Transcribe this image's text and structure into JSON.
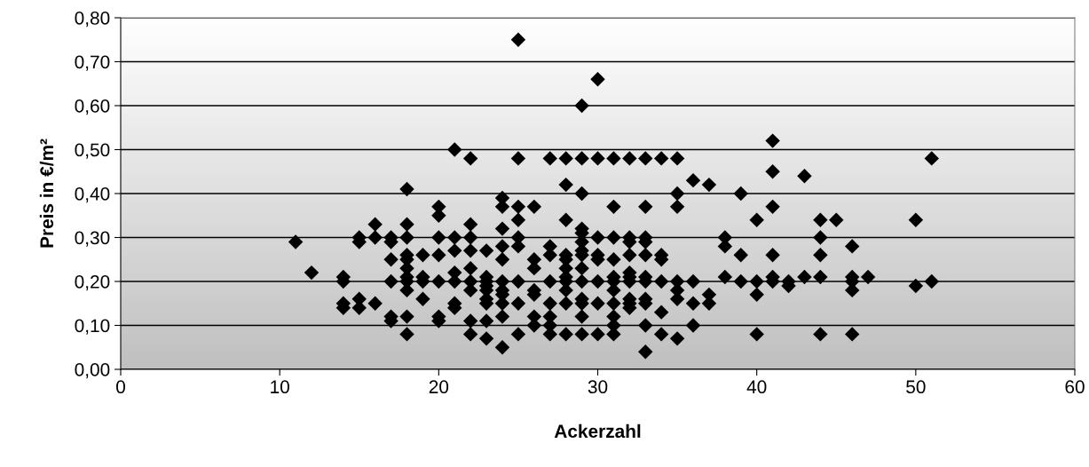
{
  "chart_data": {
    "type": "scatter",
    "xlabel": "Ackerzahl",
    "ylabel": "Preis in €/m²",
    "x": [
      11,
      12,
      14,
      14,
      14,
      14,
      15,
      15,
      15,
      15,
      16,
      16,
      16,
      17,
      17,
      17,
      17,
      17,
      17,
      18,
      18,
      18,
      18,
      18,
      18,
      18,
      18,
      18,
      18,
      18,
      19,
      19,
      19,
      19,
      20,
      20,
      20,
      20,
      20,
      20,
      20,
      21,
      21,
      21,
      21,
      21,
      21,
      21,
      22,
      22,
      22,
      22,
      22,
      22,
      22,
      22,
      22,
      23,
      23,
      23,
      23,
      23,
      23,
      23,
      23,
      23,
      24,
      24,
      24,
      24,
      24,
      24,
      24,
      24,
      24,
      24,
      24,
      25,
      25,
      25,
      25,
      25,
      25,
      25,
      25,
      25,
      26,
      26,
      26,
      26,
      26,
      26,
      26,
      27,
      27,
      27,
      27,
      27,
      27,
      27,
      27,
      28,
      28,
      28,
      28,
      28,
      28,
      28,
      28,
      28,
      28,
      28,
      29,
      29,
      29,
      29,
      29,
      29,
      29,
      29,
      29,
      29,
      29,
      29,
      29,
      29,
      30,
      30,
      30,
      30,
      30,
      30,
      30,
      30,
      31,
      31,
      31,
      31,
      31,
      31,
      31,
      31,
      31,
      31,
      31,
      32,
      32,
      32,
      32,
      32,
      32,
      32,
      32,
      32,
      32,
      33,
      33,
      33,
      33,
      33,
      33,
      33,
      33,
      33,
      33,
      33,
      34,
      34,
      34,
      34,
      34,
      34,
      35,
      35,
      35,
      35,
      35,
      35,
      35,
      36,
      36,
      36,
      36,
      37,
      37,
      37,
      38,
      38,
      38,
      39,
      39,
      39,
      40,
      40,
      40,
      40,
      41,
      41,
      41,
      41,
      41,
      41,
      42,
      42,
      43,
      43,
      44,
      44,
      44,
      44,
      44,
      45,
      46,
      46,
      46,
      46,
      46,
      47,
      50,
      50,
      51,
      51
    ],
    "values": [
      0.29,
      0.22,
      0.21,
      0.2,
      0.15,
      0.14,
      0.3,
      0.29,
      0.16,
      0.14,
      0.33,
      0.3,
      0.15,
      0.3,
      0.29,
      0.25,
      0.2,
      0.12,
      0.11,
      0.41,
      0.33,
      0.3,
      0.26,
      0.25,
      0.23,
      0.21,
      0.2,
      0.18,
      0.12,
      0.08,
      0.26,
      0.21,
      0.2,
      0.16,
      0.37,
      0.35,
      0.3,
      0.26,
      0.2,
      0.12,
      0.11,
      0.5,
      0.3,
      0.27,
      0.22,
      0.2,
      0.15,
      0.14,
      0.48,
      0.33,
      0.3,
      0.27,
      0.23,
      0.2,
      0.18,
      0.11,
      0.08,
      0.27,
      0.21,
      0.2,
      0.19,
      0.18,
      0.16,
      0.15,
      0.11,
      0.07,
      0.39,
      0.37,
      0.32,
      0.28,
      0.25,
      0.2,
      0.18,
      0.17,
      0.15,
      0.12,
      0.05,
      0.75,
      0.48,
      0.37,
      0.34,
      0.3,
      0.28,
      0.2,
      0.15,
      0.08,
      0.37,
      0.25,
      0.23,
      0.18,
      0.17,
      0.12,
      0.1,
      0.48,
      0.28,
      0.26,
      0.2,
      0.15,
      0.12,
      0.1,
      0.08,
      0.48,
      0.42,
      0.34,
      0.26,
      0.25,
      0.23,
      0.21,
      0.2,
      0.18,
      0.15,
      0.08,
      0.6,
      0.48,
      0.4,
      0.32,
      0.31,
      0.29,
      0.27,
      0.26,
      0.23,
      0.2,
      0.16,
      0.15,
      0.12,
      0.08,
      0.66,
      0.48,
      0.3,
      0.26,
      0.25,
      0.2,
      0.15,
      0.08,
      0.48,
      0.37,
      0.3,
      0.25,
      0.21,
      0.2,
      0.18,
      0.15,
      0.12,
      0.1,
      0.08,
      0.48,
      0.3,
      0.29,
      0.26,
      0.22,
      0.21,
      0.2,
      0.16,
      0.15,
      0.14,
      0.48,
      0.37,
      0.3,
      0.29,
      0.26,
      0.21,
      0.2,
      0.16,
      0.15,
      0.1,
      0.04,
      0.48,
      0.26,
      0.25,
      0.2,
      0.13,
      0.08,
      0.48,
      0.4,
      0.37,
      0.2,
      0.18,
      0.16,
      0.07,
      0.43,
      0.2,
      0.15,
      0.1,
      0.42,
      0.17,
      0.15,
      0.3,
      0.28,
      0.21,
      0.4,
      0.26,
      0.2,
      0.34,
      0.2,
      0.17,
      0.08,
      0.52,
      0.45,
      0.37,
      0.26,
      0.21,
      0.2,
      0.2,
      0.19,
      0.44,
      0.21,
      0.34,
      0.3,
      0.26,
      0.21,
      0.08,
      0.34,
      0.28,
      0.21,
      0.2,
      0.18,
      0.08,
      0.21,
      0.34,
      0.19,
      0.48,
      0.2
    ],
    "color": "#000000",
    "marker": "diamond",
    "xlim": [
      0,
      60
    ],
    "xticks": [
      0,
      10,
      20,
      30,
      40,
      50,
      60
    ],
    "ylim": [
      0,
      0.8
    ],
    "yticks": [
      {
        "value": 0,
        "label": "0,00"
      },
      {
        "value": 0.1,
        "label": "0,10"
      },
      {
        "value": 0.2,
        "label": "0,20"
      },
      {
        "value": 0.3,
        "label": "0,30"
      },
      {
        "value": 0.4,
        "label": "0,40"
      },
      {
        "value": 0.5,
        "label": "0,50"
      },
      {
        "value": 0.6,
        "label": "0,60"
      },
      {
        "value": 0.7,
        "label": "0,70"
      },
      {
        "value": 0.8,
        "label": "0,80"
      }
    ],
    "grid": "y",
    "legend": false
  }
}
